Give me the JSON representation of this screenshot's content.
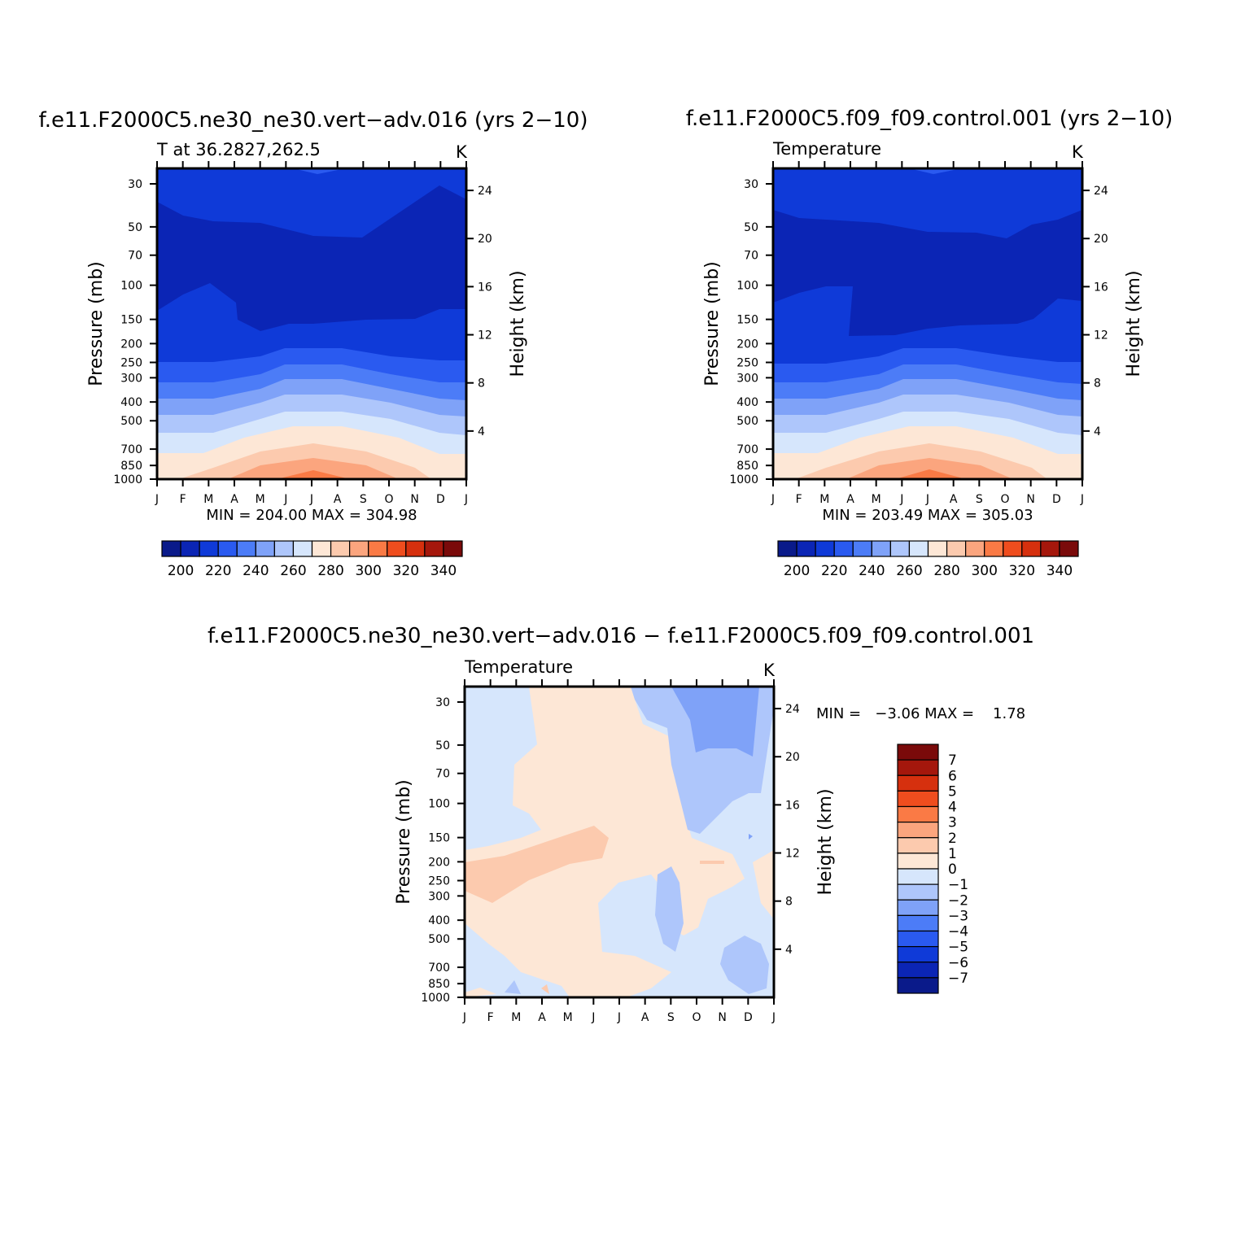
{
  "chart_data": [
    {
      "type": "heatmap",
      "title": "f.e11.F2000C5.ne30_ne30.vert−adv.016 (yrs 2−10)",
      "subtitle_left": "T at 36.2827,262.5",
      "units": "K",
      "xlabel": "",
      "ylabel": "Pressure (mb)",
      "ylabel_right": "Height (km)",
      "x_ticks": [
        "J",
        "F",
        "M",
        "A",
        "M",
        "J",
        "J",
        "A",
        "S",
        "O",
        "N",
        "D",
        "J"
      ],
      "y_ticks": [
        "30",
        "50",
        "70",
        "100",
        "150",
        "200",
        "250",
        "300",
        "400",
        "500",
        "700",
        "850",
        "1000"
      ],
      "y_right_ticks": [
        "24",
        "20",
        "16",
        "12",
        "8",
        "4"
      ],
      "min_max_text": "MIN = 204.00 MAX = 304.98",
      "colorbar_labels": [
        "200",
        "220",
        "240",
        "260",
        "280",
        "300",
        "320",
        "340"
      ],
      "summary": {
        "min": 204.0,
        "max": 304.98
      }
    },
    {
      "type": "heatmap",
      "title": "f.e11.F2000C5.f09_f09.control.001 (yrs 2−10)",
      "subtitle_left": "Temperature",
      "units": "K",
      "xlabel": "",
      "ylabel": "Pressure (mb)",
      "ylabel_right": "Height (km)",
      "x_ticks": [
        "J",
        "F",
        "M",
        "A",
        "M",
        "J",
        "J",
        "A",
        "S",
        "O",
        "N",
        "D",
        "J"
      ],
      "y_ticks": [
        "30",
        "50",
        "70",
        "100",
        "150",
        "200",
        "250",
        "300",
        "400",
        "500",
        "700",
        "850",
        "1000"
      ],
      "y_right_ticks": [
        "24",
        "20",
        "16",
        "12",
        "8",
        "4"
      ],
      "min_max_text": "MIN = 203.49 MAX = 305.03",
      "colorbar_labels": [
        "200",
        "220",
        "240",
        "260",
        "280",
        "300",
        "320",
        "340"
      ],
      "summary": {
        "min": 203.49,
        "max": 305.03
      }
    },
    {
      "type": "heatmap",
      "title": "f.e11.F2000C5.ne30_ne30.vert−adv.016 − f.e11.F2000C5.f09_f09.control.001",
      "subtitle_left": "Temperature",
      "units": "K",
      "xlabel": "",
      "ylabel": "Pressure (mb)",
      "ylabel_right": "Height (km)",
      "x_ticks": [
        "J",
        "F",
        "M",
        "A",
        "M",
        "J",
        "J",
        "A",
        "S",
        "O",
        "N",
        "D",
        "J"
      ],
      "y_ticks": [
        "30",
        "50",
        "70",
        "100",
        "150",
        "200",
        "250",
        "300",
        "400",
        "500",
        "700",
        "850",
        "1000"
      ],
      "y_right_ticks": [
        "24",
        "20",
        "16",
        "12",
        "8",
        "4"
      ],
      "min_max_text": "MIN =   −3.06 MAX =    1.78",
      "colorbar_labels": [
        "7",
        "6",
        "5",
        "4",
        "3",
        "2",
        "1",
        "0",
        "−1",
        "−2",
        "−3",
        "−4",
        "−5",
        "−6",
        "−7"
      ],
      "summary": {
        "min": -3.06,
        "max": 1.78
      }
    }
  ],
  "colors": {
    "abs_scale": [
      "#0a1a8a",
      "#0b25b5",
      "#0f3ad8",
      "#2a5af0",
      "#4c7cf7",
      "#7fa2f8",
      "#aec6fb",
      "#d6e6fc",
      "#fde7d6",
      "#fccaae",
      "#fba57e",
      "#fa7a45",
      "#ef4d1e",
      "#d6300e",
      "#a5170c",
      "#7a0a0a"
    ],
    "diff_scale": [
      "#0a1a8a",
      "#0b25b5",
      "#0f3ad8",
      "#2a5af0",
      "#4c7cf7",
      "#7fa2f8",
      "#aec6fb",
      "#d6e6fc",
      "#fde7d6",
      "#fccaae",
      "#fba57e",
      "#fa7a45",
      "#ef4d1e",
      "#d6300e",
      "#a5170c",
      "#7a0a0a"
    ]
  }
}
